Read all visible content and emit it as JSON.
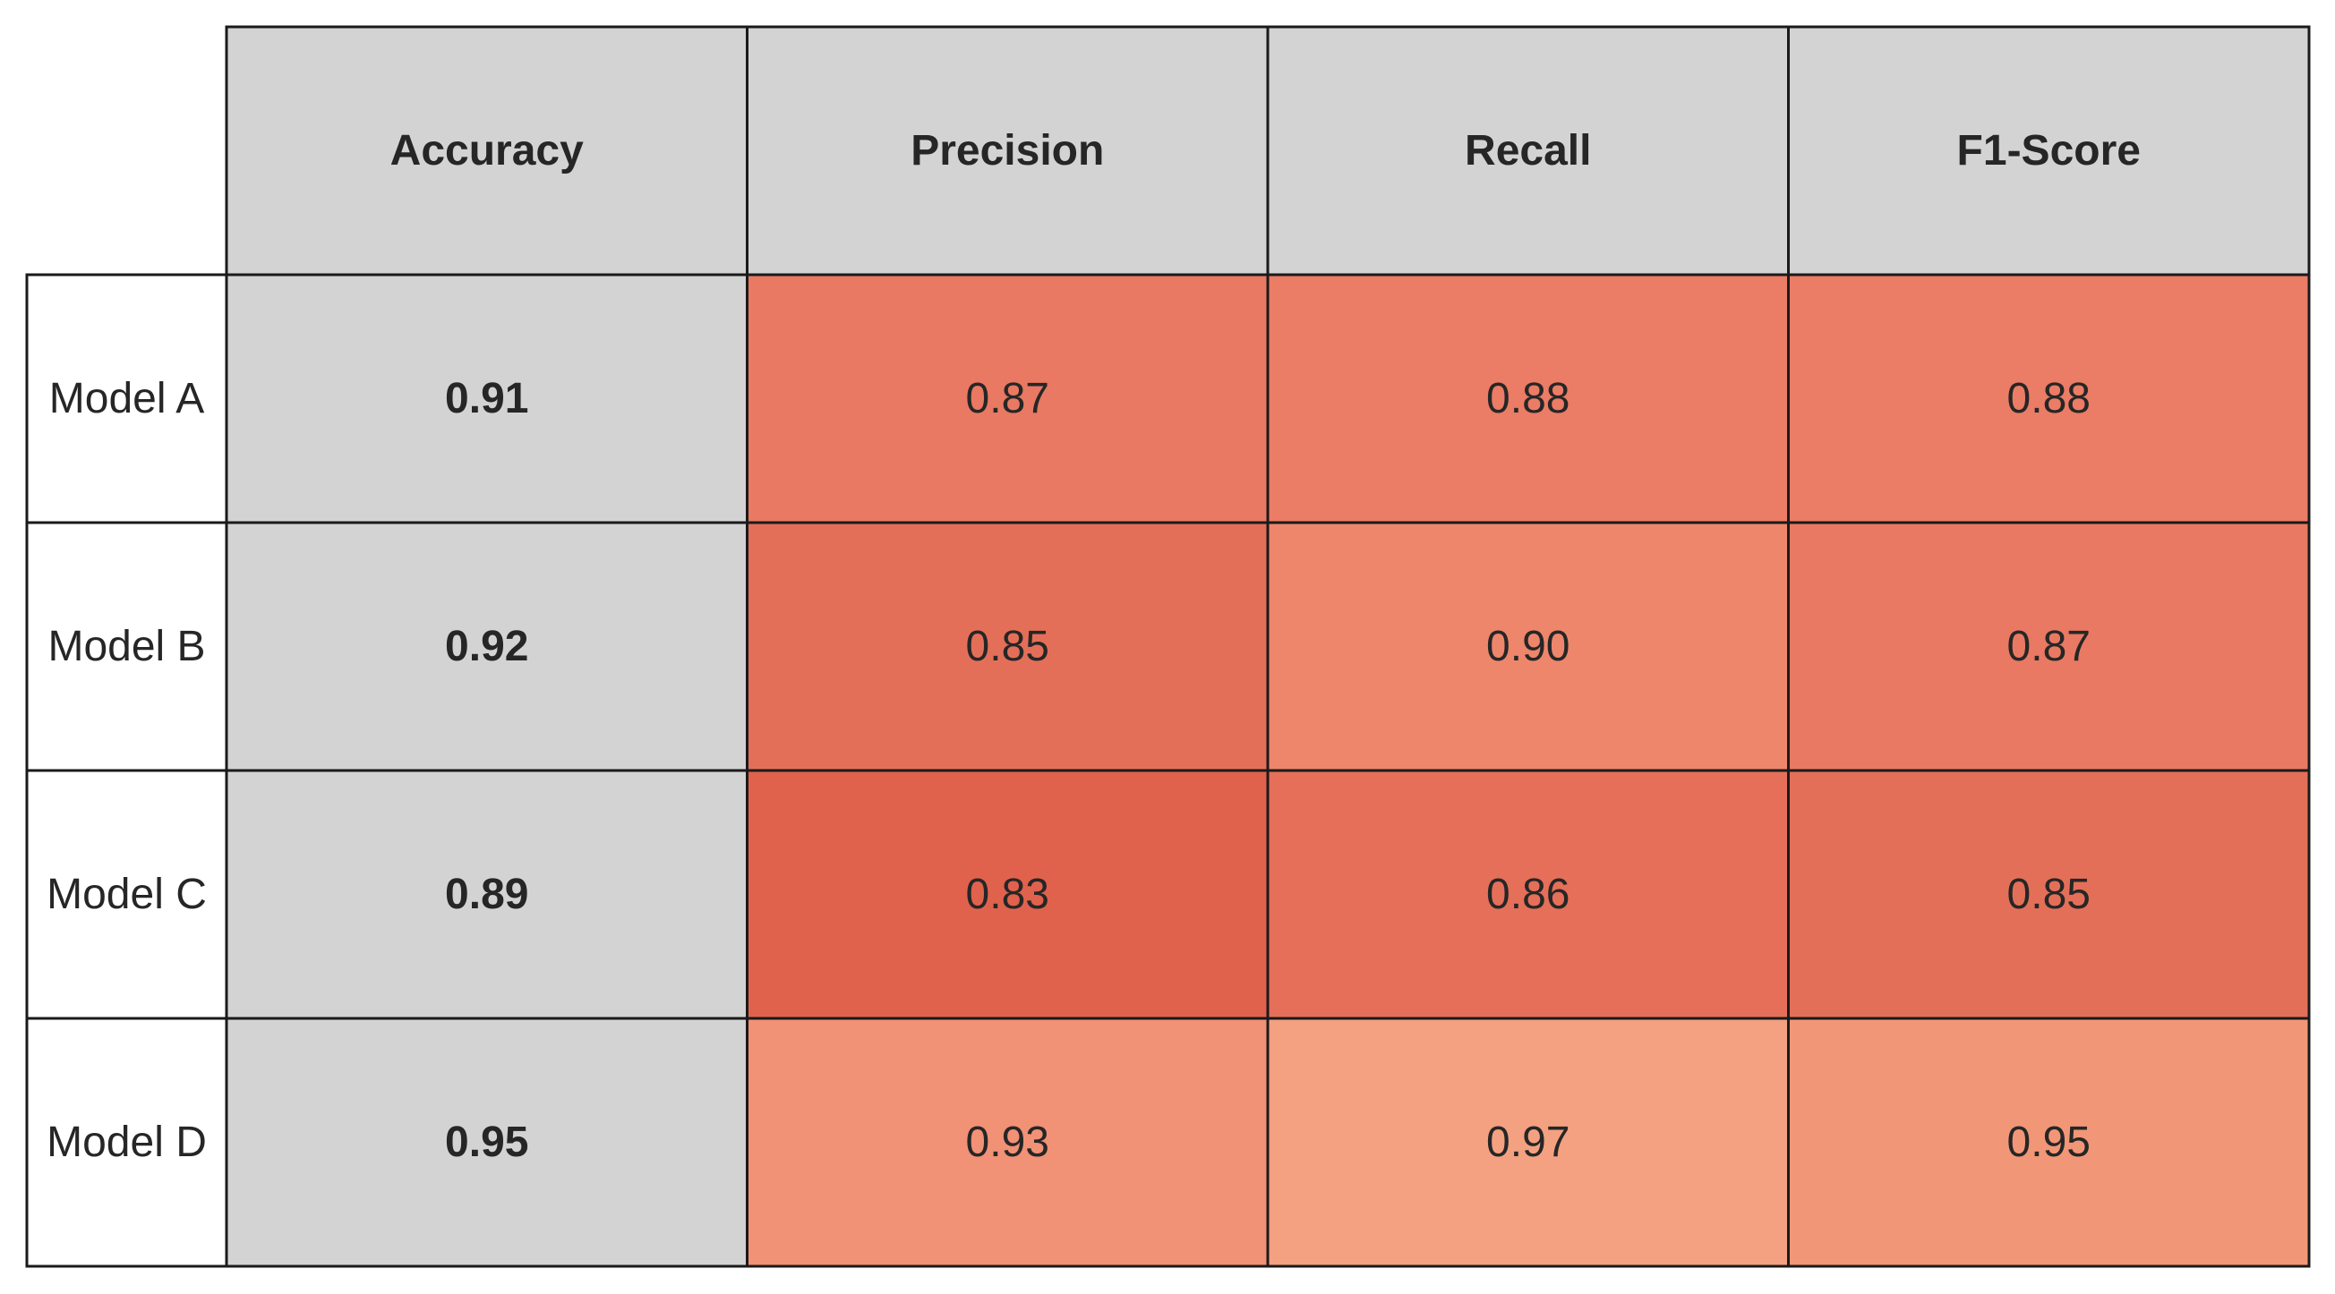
{
  "chart_data": {
    "type": "table",
    "columns": [
      "Accuracy",
      "Precision",
      "Recall",
      "F1-Score"
    ],
    "rows": [
      {
        "label": "Model A",
        "values": [
          "0.91",
          "0.87",
          "0.88",
          "0.88"
        ]
      },
      {
        "label": "Model B",
        "values": [
          "0.92",
          "0.85",
          "0.90",
          "0.87"
        ]
      },
      {
        "label": "Model C",
        "values": [
          "0.89",
          "0.83",
          "0.86",
          "0.85"
        ]
      },
      {
        "label": "Model D",
        "values": [
          "0.95",
          "0.93",
          "0.97",
          "0.95"
        ]
      }
    ],
    "bold_columns": [
      "Accuracy"
    ],
    "colors": {
      "header_fill": "#d3d3d3",
      "row_label_fill": "#ffffff",
      "accuracy_fill": "#d3d3d3",
      "border": "#1a1a1a",
      "text": "#262626",
      "heat_fills": [
        [
          "#d3d3d3",
          "#e97962",
          "#eb7c65",
          "#eb7c65"
        ],
        [
          "#d3d3d3",
          "#e46f58",
          "#ee866c",
          "#e97962"
        ],
        [
          "#d3d3d3",
          "#e0624d",
          "#e66f59",
          "#e46f58"
        ],
        [
          "#d3d3d3",
          "#f19176",
          "#f3a181",
          "#f19777"
        ]
      ]
    }
  }
}
